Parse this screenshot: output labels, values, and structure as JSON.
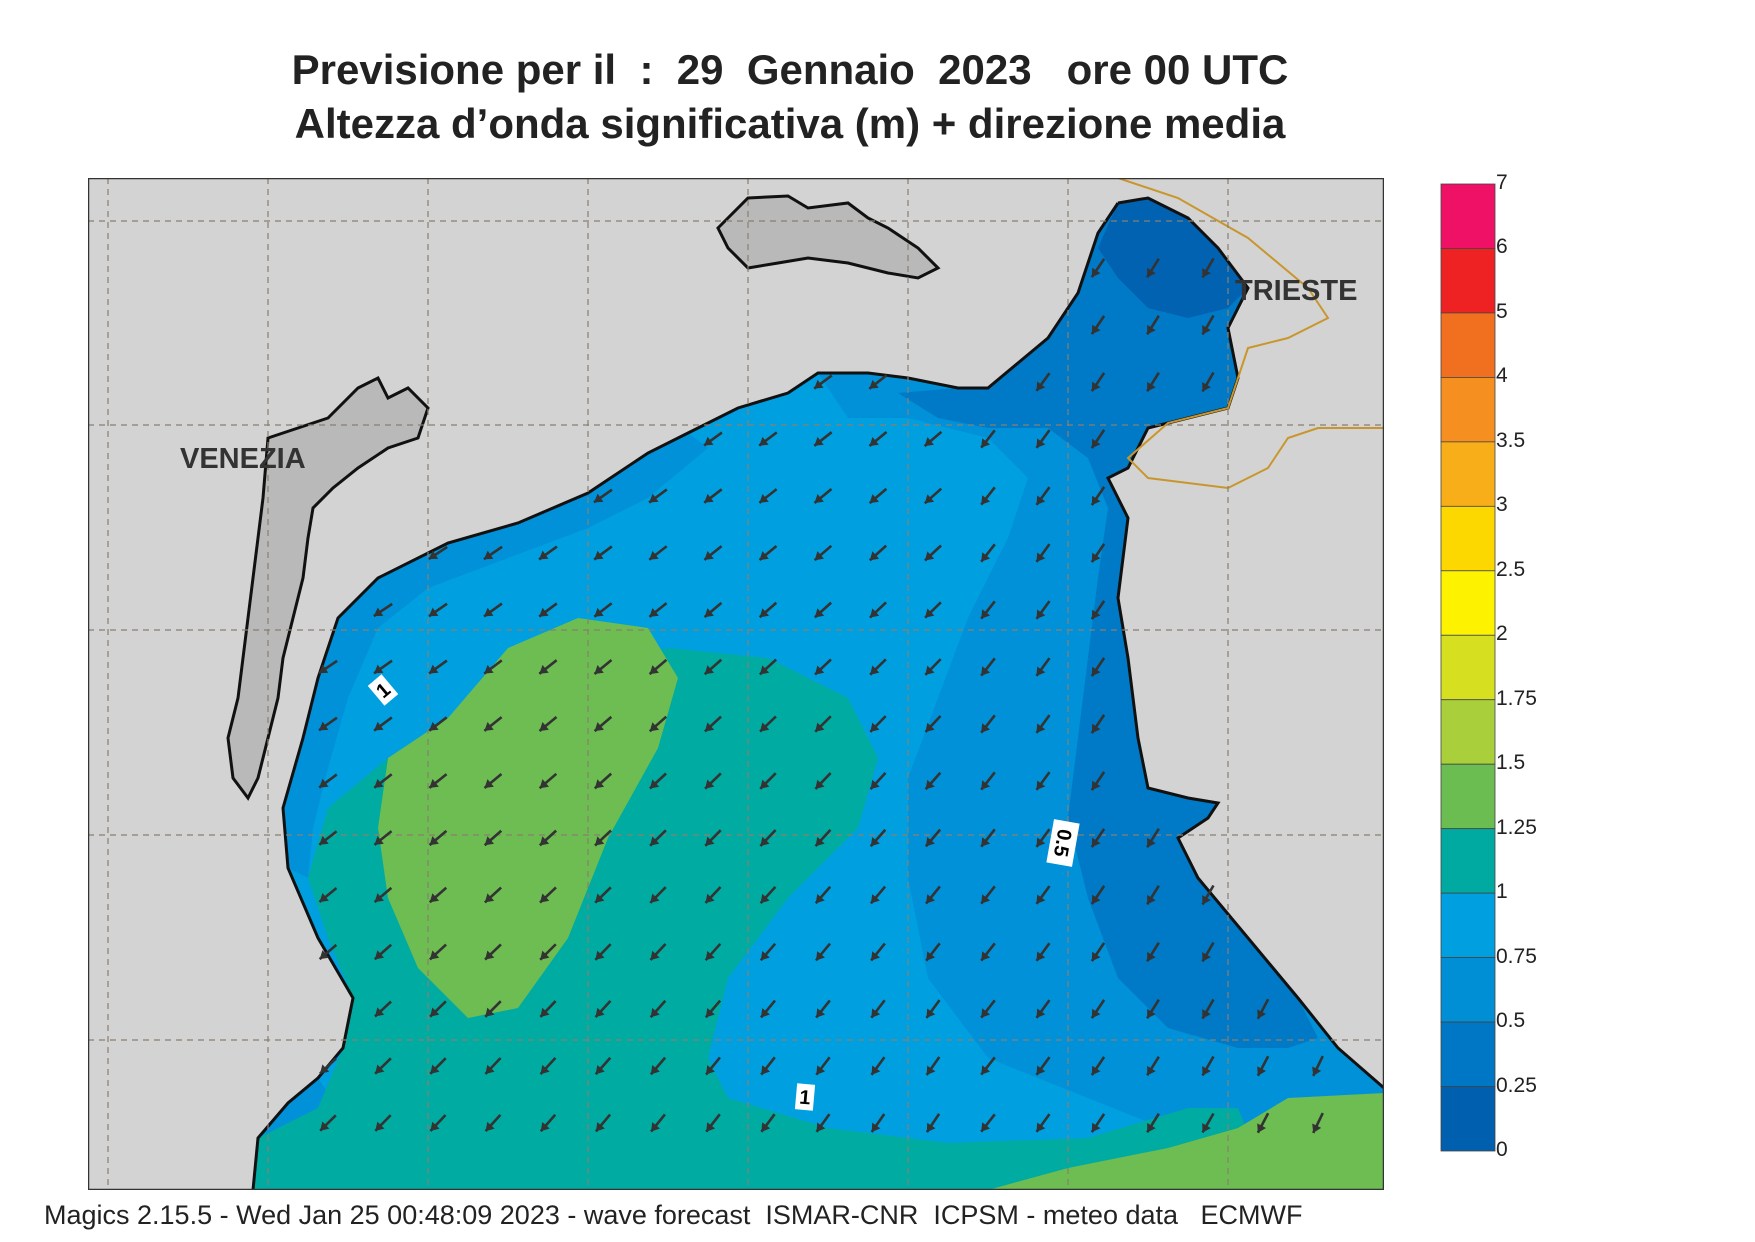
{
  "title": {
    "line1": "Previsione per il  :  29  Gennaio  2023   ore 00 UTC",
    "line2": "Altezza d’onda significativa (m) + direzione media"
  },
  "map": {
    "cities": [
      {
        "name": "VENEZIA"
      },
      {
        "name": "TRIESTE"
      }
    ],
    "contour_labels": [
      "1",
      "0.5",
      "1"
    ],
    "arrow_direction": "southwest"
  },
  "legend": {
    "unit": "m",
    "levels": [
      {
        "value": "7",
        "color": "#ffffff"
      },
      {
        "value": "6",
        "color": "#ee1166"
      },
      {
        "value": "5",
        "color": "#ee2222"
      },
      {
        "value": "4",
        "color": "#f07020"
      },
      {
        "value": "3.5",
        "color": "#f59020"
      },
      {
        "value": "3",
        "color": "#f8ae18"
      },
      {
        "value": "2.5",
        "color": "#fcd800"
      },
      {
        "value": "2",
        "color": "#fdf300"
      },
      {
        "value": "1.75",
        "color": "#d6e020"
      },
      {
        "value": "1.5",
        "color": "#a9cf3a"
      },
      {
        "value": "1.25",
        "color": "#6bbd52"
      },
      {
        "value": "1",
        "color": "#00aaa0"
      },
      {
        "value": "0.75",
        "color": "#009fe0"
      },
      {
        "value": "0.5",
        "color": "#008fd5"
      },
      {
        "value": "0.25",
        "color": "#0077c4"
      },
      {
        "value": "0",
        "color": "#005fae"
      }
    ]
  },
  "colors": {
    "land": "#d3d3d3",
    "border": "#c8962d",
    "grid": "#8a7f70"
  },
  "footer": "Magics 2.15.5 - Wed Jan 25 00:48:09 2023 - wave forecast  ISMAR-CNR  ICPSM - meteo data   ECMWF"
}
